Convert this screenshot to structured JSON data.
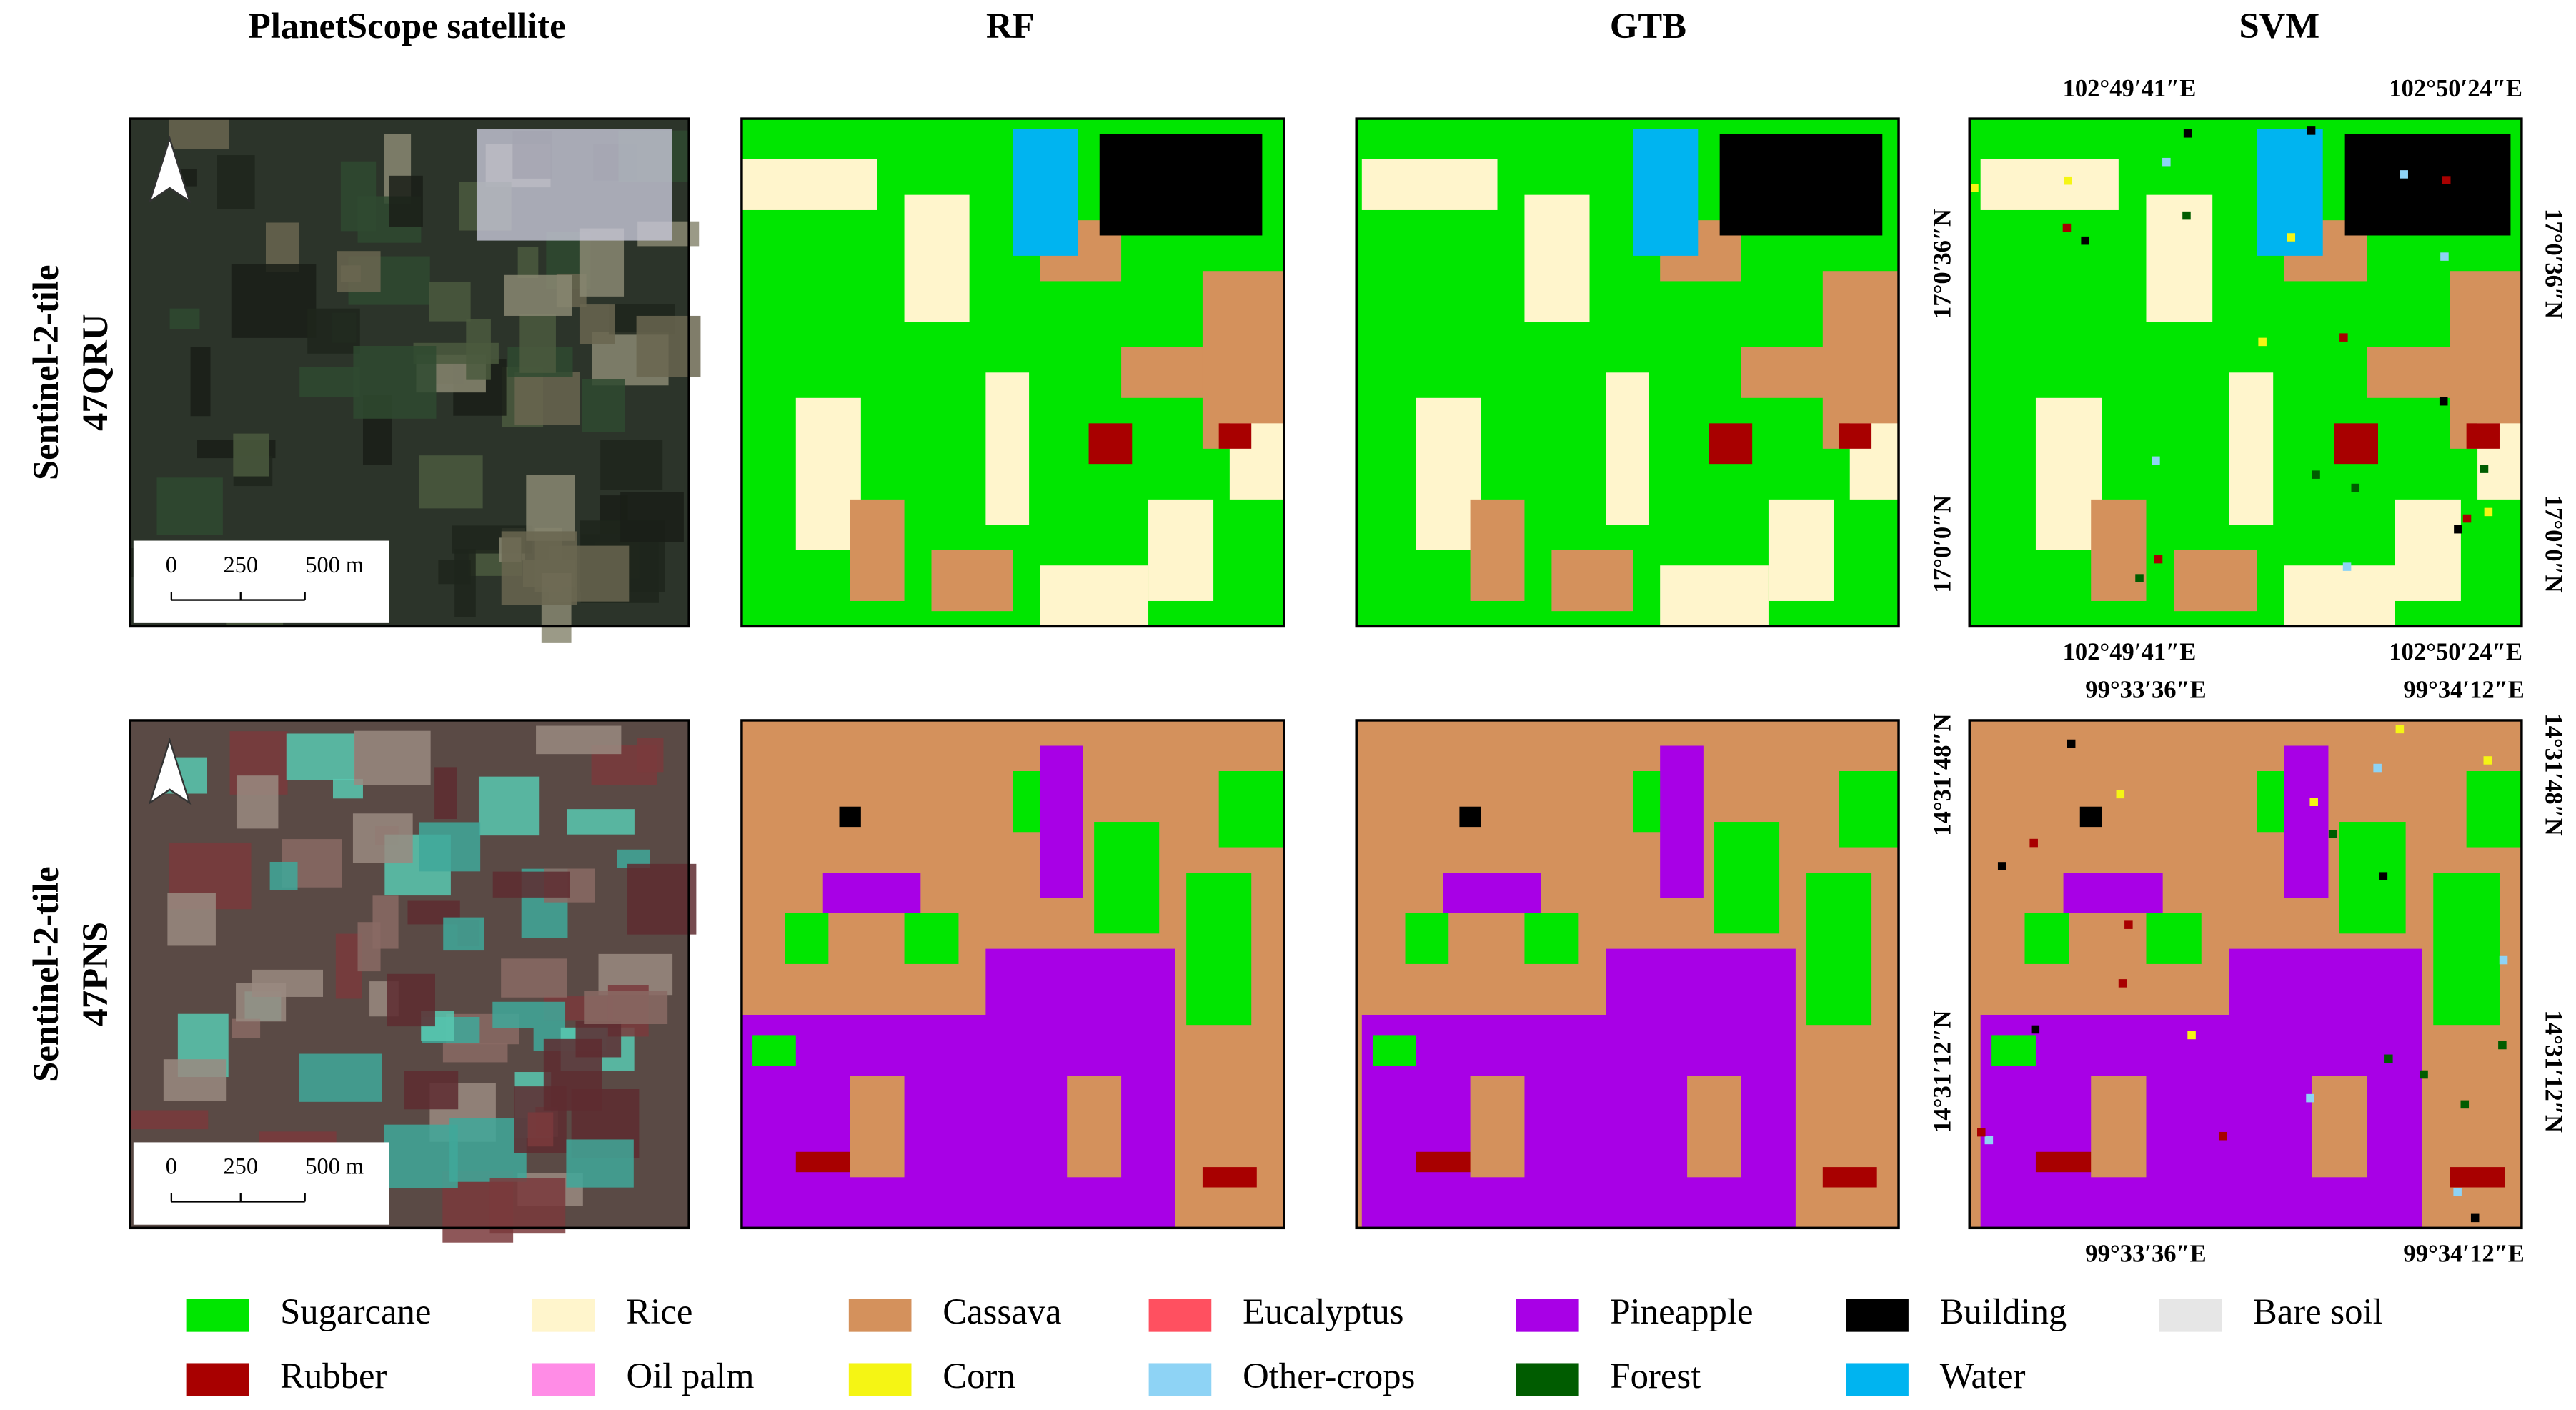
{
  "columns": [
    "PlanetScope satellite",
    "RF",
    "GTB",
    "SVM"
  ],
  "rows": [
    {
      "label_line1": "Sentinel-2-tile",
      "label_line2": "47QRU",
      "scale_labels": [
        "0",
        "250",
        "500 m"
      ],
      "coords": {
        "top": [
          "102°49′41″E",
          "102°50′24″E"
        ],
        "bottom": [
          "102°49′41″E",
          "102°50′24″E"
        ],
        "left": [
          "17°0′36″N",
          "17°0′0″N"
        ],
        "right": [
          "17°0′36″N",
          "17°0′0″N"
        ]
      }
    },
    {
      "label_line1": "Sentinel-2-tile",
      "label_line2": "47PNS",
      "scale_labels": [
        "0",
        "250",
        "500 m"
      ],
      "coords": {
        "top": [
          "99°33′36″E",
          "99°34′12″E"
        ],
        "bottom": [
          "99°33′36″E",
          "99°34′12″E"
        ],
        "left": [
          "14°31′48″N",
          "14°31′12″N"
        ],
        "right": [
          "14°31′48″N",
          "14°31′12″N"
        ]
      }
    }
  ],
  "legend": [
    {
      "label": "Sugarcane",
      "color": "#00e600"
    },
    {
      "label": "Rice",
      "color": "#fff5cc"
    },
    {
      "label": "Cassava",
      "color": "#d4915c"
    },
    {
      "label": "Eucalyptus",
      "color": "#ff5060"
    },
    {
      "label": "Pineapple",
      "color": "#a800e6"
    },
    {
      "label": "Building",
      "color": "#000000"
    },
    {
      "label": "Bare soil",
      "color": "#e6e6e6"
    },
    {
      "label": "Rubber",
      "color": "#a80000"
    },
    {
      "label": "Oil palm",
      "color": "#ff8ce6"
    },
    {
      "label": "Corn",
      "color": "#f5f514"
    },
    {
      "label": "Other-crops",
      "color": "#8ed3f5"
    },
    {
      "label": "Forest",
      "color": "#005c00"
    },
    {
      "label": "Water",
      "color": "#00b4f0"
    }
  ]
}
